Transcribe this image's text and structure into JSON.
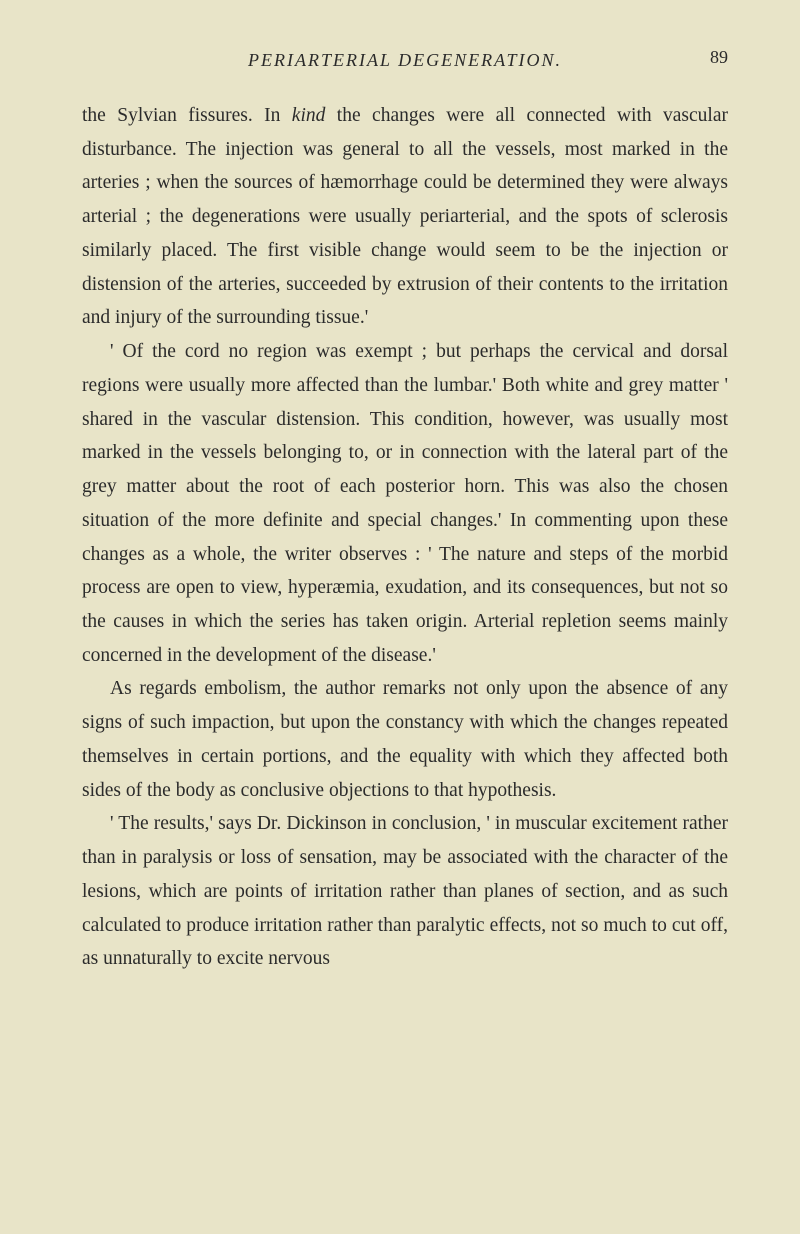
{
  "header": {
    "title": "PERIARTERIAL DEGENERATION.",
    "page_number": "89"
  },
  "paragraphs": {
    "p1_part1": "the Sylvian fissures. In ",
    "p1_italic": "kind",
    "p1_part2": " the changes were all connected with vascular disturbance. The injection was general to all the vessels, most marked in the arteries ; when the sources of hæmorrhage could be determined they were always arterial ; the degenerations were usually periarterial, and the spots of sclerosis similarly placed. The first visible change would seem to be the injection or distension of the arteries, succeeded by extrusion of their contents to the irritation and injury of the surrounding tissue.'",
    "p2": "' Of the cord no region was exempt ; but perhaps the cervical and dorsal regions were usually more affected than the lumbar.' Both white and grey matter ' shared in the vascular distension. This condition, however, was usually most marked in the vessels belonging to, or in connection with the lateral part of the grey matter about the root of each posterior horn. This was also the chosen situation of the more definite and special changes.' In commenting upon these changes as a whole, the writer observes : ' The nature and steps of the morbid process are open to view, hyperæmia, exudation, and its consequences, but not so the causes in which the series has taken origin. Arterial repletion seems mainly concerned in the development of the disease.'",
    "p3": "As regards embolism, the author remarks not only upon the absence of any signs of such impaction, but upon the constancy with which the changes repeated themselves in certain portions, and the equality with which they affected both sides of the body as conclusive objections to that hypothesis.",
    "p4": "' The results,' says Dr. Dickinson in conclusion, ' in muscular excitement rather than in paralysis or loss of sensation, may be associated with the character of the lesions, which are points of irritation rather than planes of section, and as such calculated to produce irritation rather than paralytic effects, not so much to cut off, as unnaturally to excite nervous"
  },
  "styles": {
    "background_color": "#e8e4c8",
    "text_color": "#2a2a2a",
    "body_font_size": 19.5,
    "header_font_size": 18,
    "line_height": 1.73
  }
}
